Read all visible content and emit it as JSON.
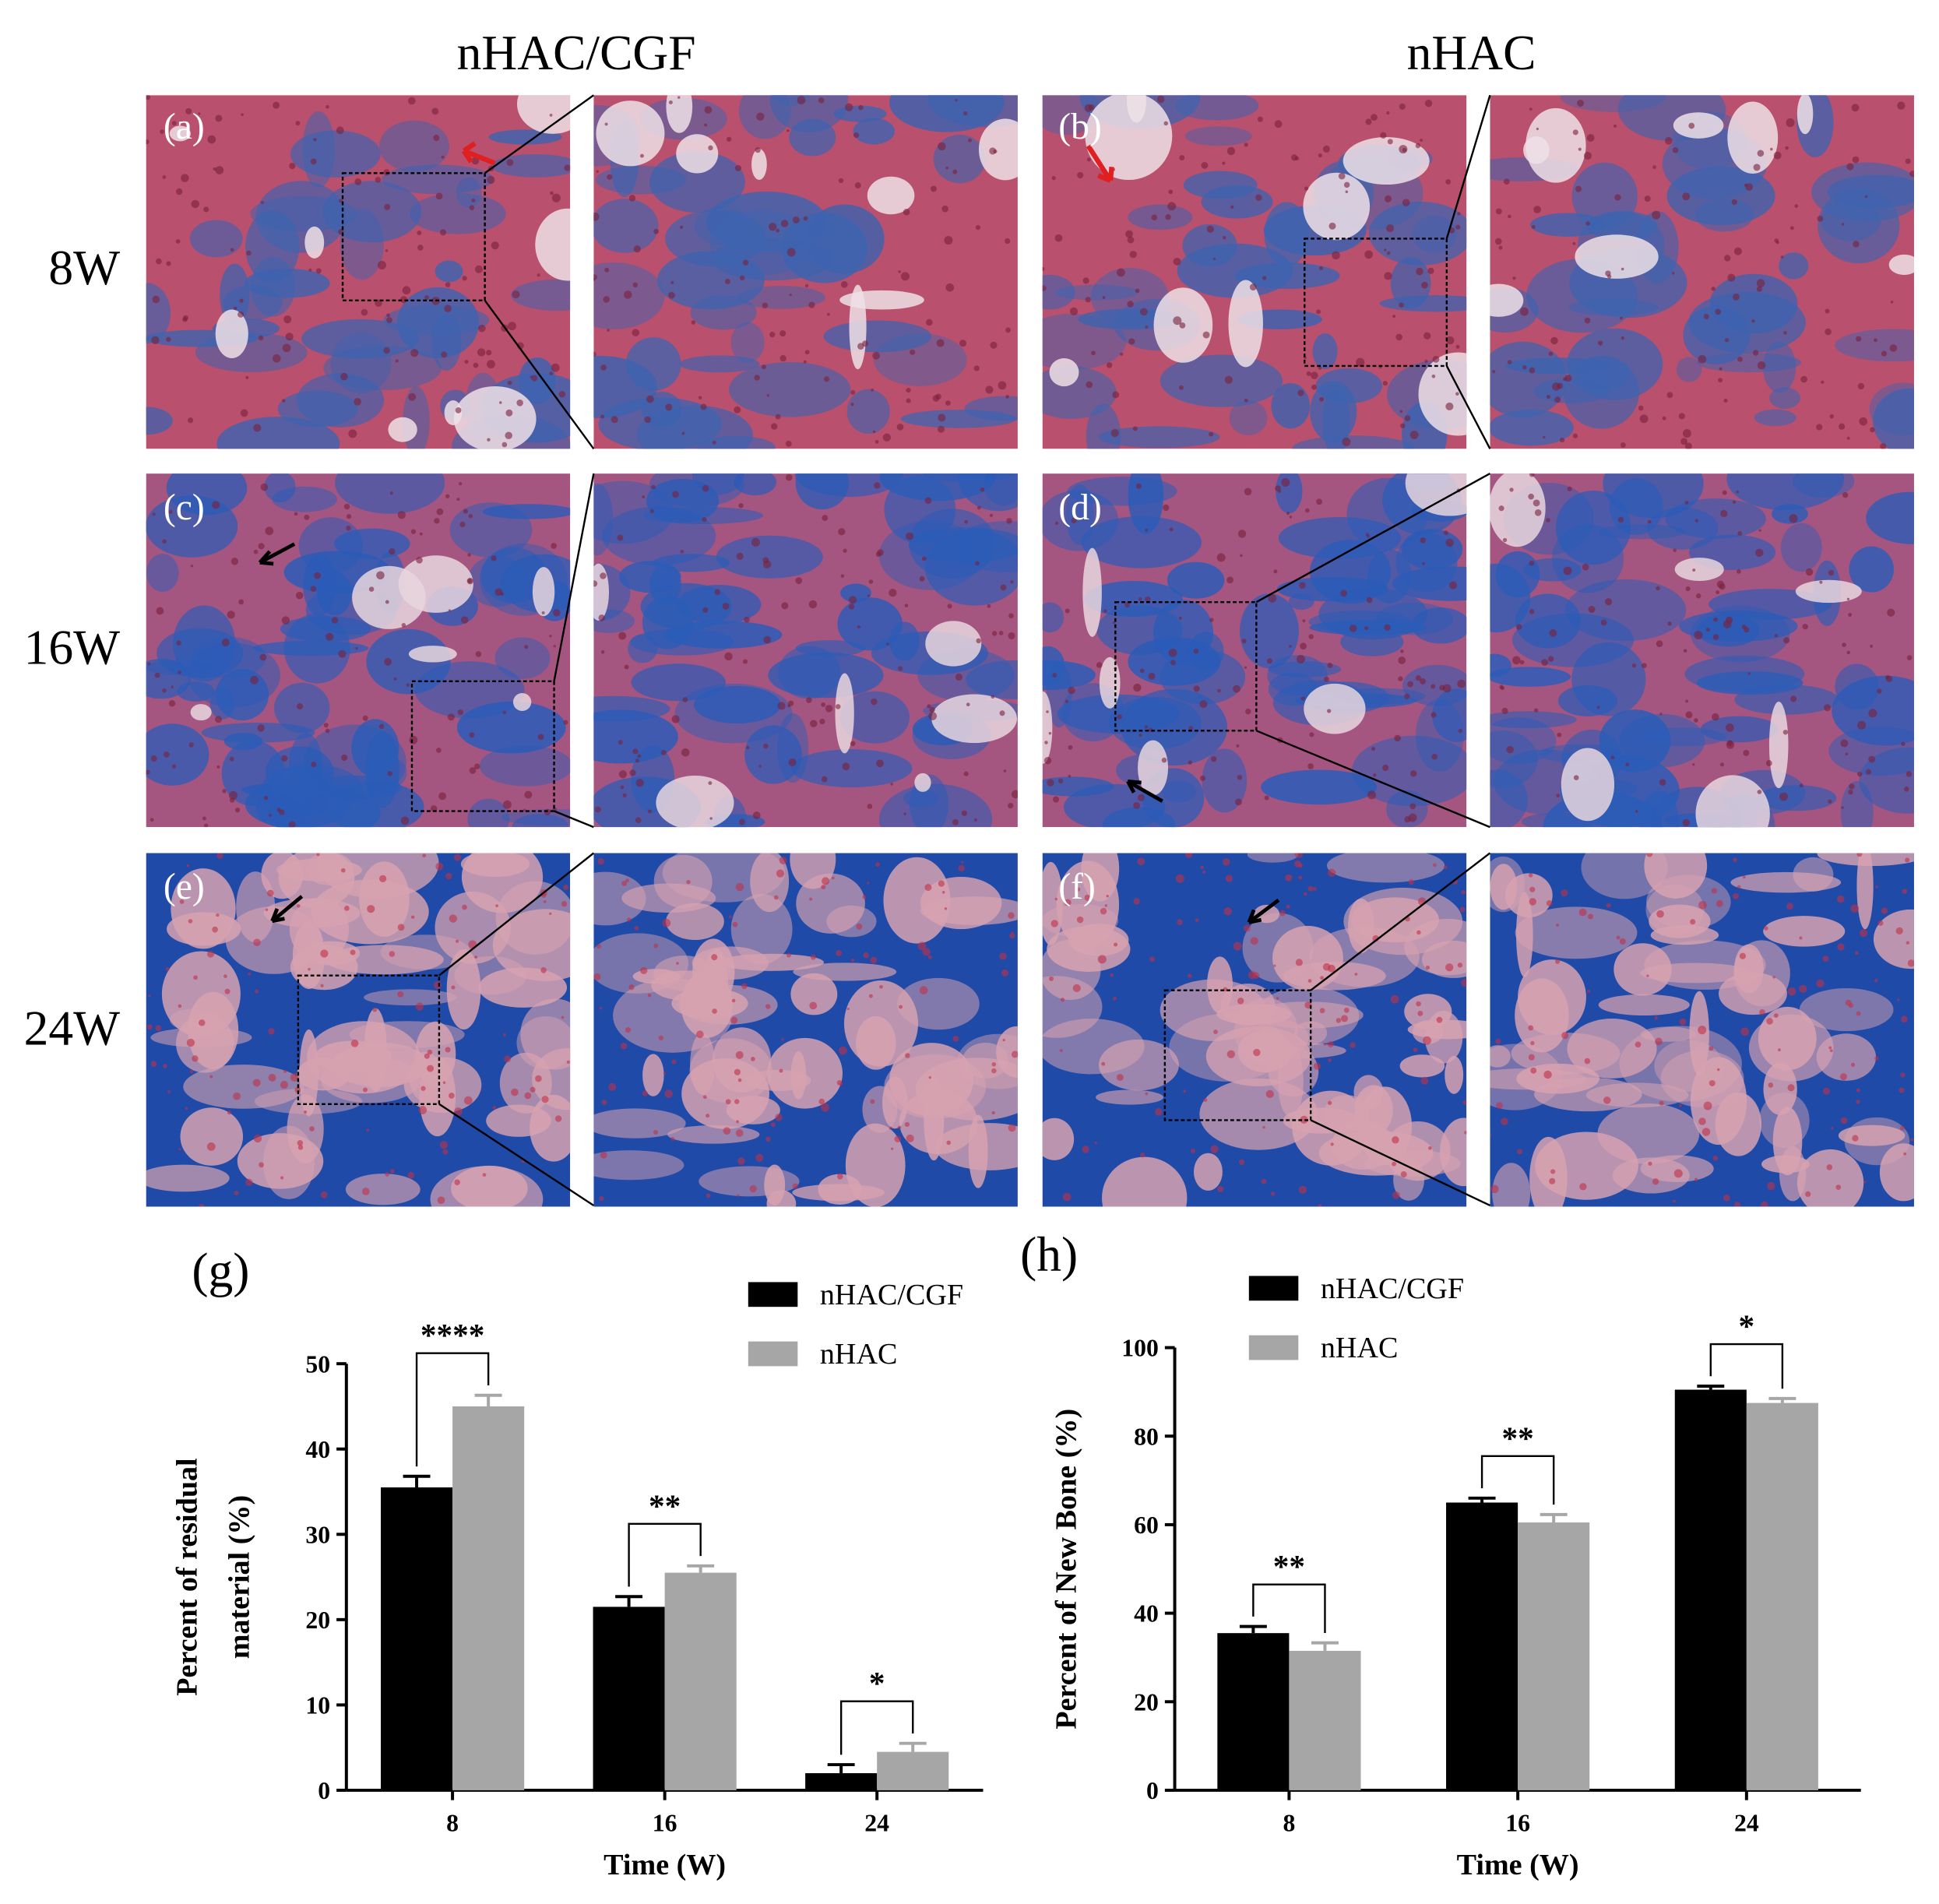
{
  "columns": [
    "nHAC/CGF",
    "nHAC"
  ],
  "rows": [
    "8W",
    "16W",
    "24W"
  ],
  "panel_labels": [
    "(a)",
    "(b)",
    "(c)",
    "(d)",
    "(e)",
    "(f)"
  ],
  "chart_data": [
    {
      "type": "bar",
      "panel_label": "(g)",
      "x_label": "Time (W)",
      "y_label": [
        "Percent of residual",
        "material  (%)"
      ],
      "categories": [
        "8",
        "16",
        "24"
      ],
      "series": [
        {
          "name": "nHAC/CGF",
          "color": "#000000",
          "values": [
            35.5,
            21.5,
            2
          ],
          "errors": [
            1.3,
            1.2,
            1
          ]
        },
        {
          "name": "nHAC",
          "color": "#a6a6a6",
          "values": [
            45,
            25.5,
            4.5
          ],
          "errors": [
            1.3,
            0.8,
            1
          ]
        }
      ],
      "annotations": [
        "****",
        "**",
        "*"
      ],
      "ylim": [
        0,
        50
      ],
      "yticks": [
        0,
        10,
        20,
        30,
        40,
        50
      ],
      "legend": "upper right"
    },
    {
      "type": "bar",
      "panel_label": "(h)",
      "x_label": "Time (W)",
      "y_label": "Percent of New Bone (%)",
      "categories": [
        "8",
        "16",
        "24"
      ],
      "series": [
        {
          "name": "nHAC/CGF",
          "color": "#000000",
          "values": [
            35.5,
            65,
            90.5
          ],
          "errors": [
            1.5,
            1,
            0.8
          ]
        },
        {
          "name": "nHAC",
          "color": "#a6a6a6",
          "values": [
            31.5,
            60.5,
            87.5
          ],
          "errors": [
            1.8,
            1.8,
            1
          ]
        }
      ],
      "annotations": [
        "**",
        "**",
        "*"
      ],
      "ylim": [
        0,
        100
      ],
      "yticks": [
        0,
        20,
        40,
        60,
        80,
        100
      ],
      "legend": "upper left"
    }
  ]
}
